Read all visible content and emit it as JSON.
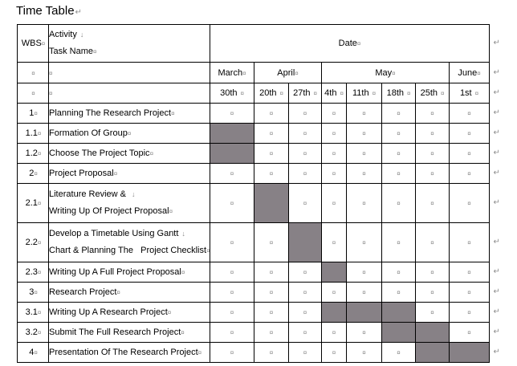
{
  "title": {
    "text": "Time Table",
    "mark": "↵"
  },
  "marks": {
    "cell_end": "¤",
    "row_end": "↵",
    "line_break": "↓"
  },
  "colors": {
    "bar_fill": "#878186",
    "border": "#000000",
    "mark_gray": "#8a8a8a",
    "text": "#000000",
    "background": "#ffffff"
  },
  "table": {
    "header": {
      "wbs_label": "WBS",
      "activity_lines": [
        "Activity",
        "Task Name"
      ],
      "date_label": "Date"
    },
    "months": [
      {
        "label": "March",
        "span": 1
      },
      {
        "label": "April",
        "span": 2
      },
      {
        "label": "May",
        "span": 4
      },
      {
        "label": "June",
        "span": 1
      }
    ],
    "days": [
      "30th",
      "20th",
      "27th",
      "4th",
      "11th",
      "18th",
      "25th",
      "1st"
    ],
    "rows": [
      {
        "wbs": "1",
        "task_lines": [
          "Planning The Research Project"
        ],
        "bars": []
      },
      {
        "wbs": "1.1",
        "task_lines": [
          "Formation Of Group"
        ],
        "bars": [
          0
        ]
      },
      {
        "wbs": "1.2",
        "task_lines": [
          "Choose The Project Topic"
        ],
        "bars": [
          0
        ]
      },
      {
        "wbs": "2",
        "task_lines": [
          "Project Proposal"
        ],
        "bars": []
      },
      {
        "wbs": "2.1",
        "task_lines": [
          "Literature Review & ",
          "Writing Up Of Project Proposal"
        ],
        "bars": [
          1
        ]
      },
      {
        "wbs": "2.2",
        "task_lines": [
          "Develop a Timetable Using Gantt",
          "Chart & Planning The   Project Checklist"
        ],
        "bars": [
          2
        ]
      },
      {
        "wbs": "2.3",
        "task_lines": [
          "Writing Up A Full Project Proposal"
        ],
        "bars": [
          3
        ]
      },
      {
        "wbs": "3",
        "task_lines": [
          "Research Project"
        ],
        "bars": []
      },
      {
        "wbs": "3.1",
        "task_lines": [
          "Writing Up A Research Project"
        ],
        "bars": [
          3,
          4,
          5
        ]
      },
      {
        "wbs": "3.2",
        "task_lines": [
          "Submit The Full Research Project"
        ],
        "bars": [
          5,
          6
        ]
      },
      {
        "wbs": "4",
        "task_lines": [
          "Presentation Of The Research Project"
        ],
        "bars": [
          6,
          7
        ]
      }
    ]
  }
}
